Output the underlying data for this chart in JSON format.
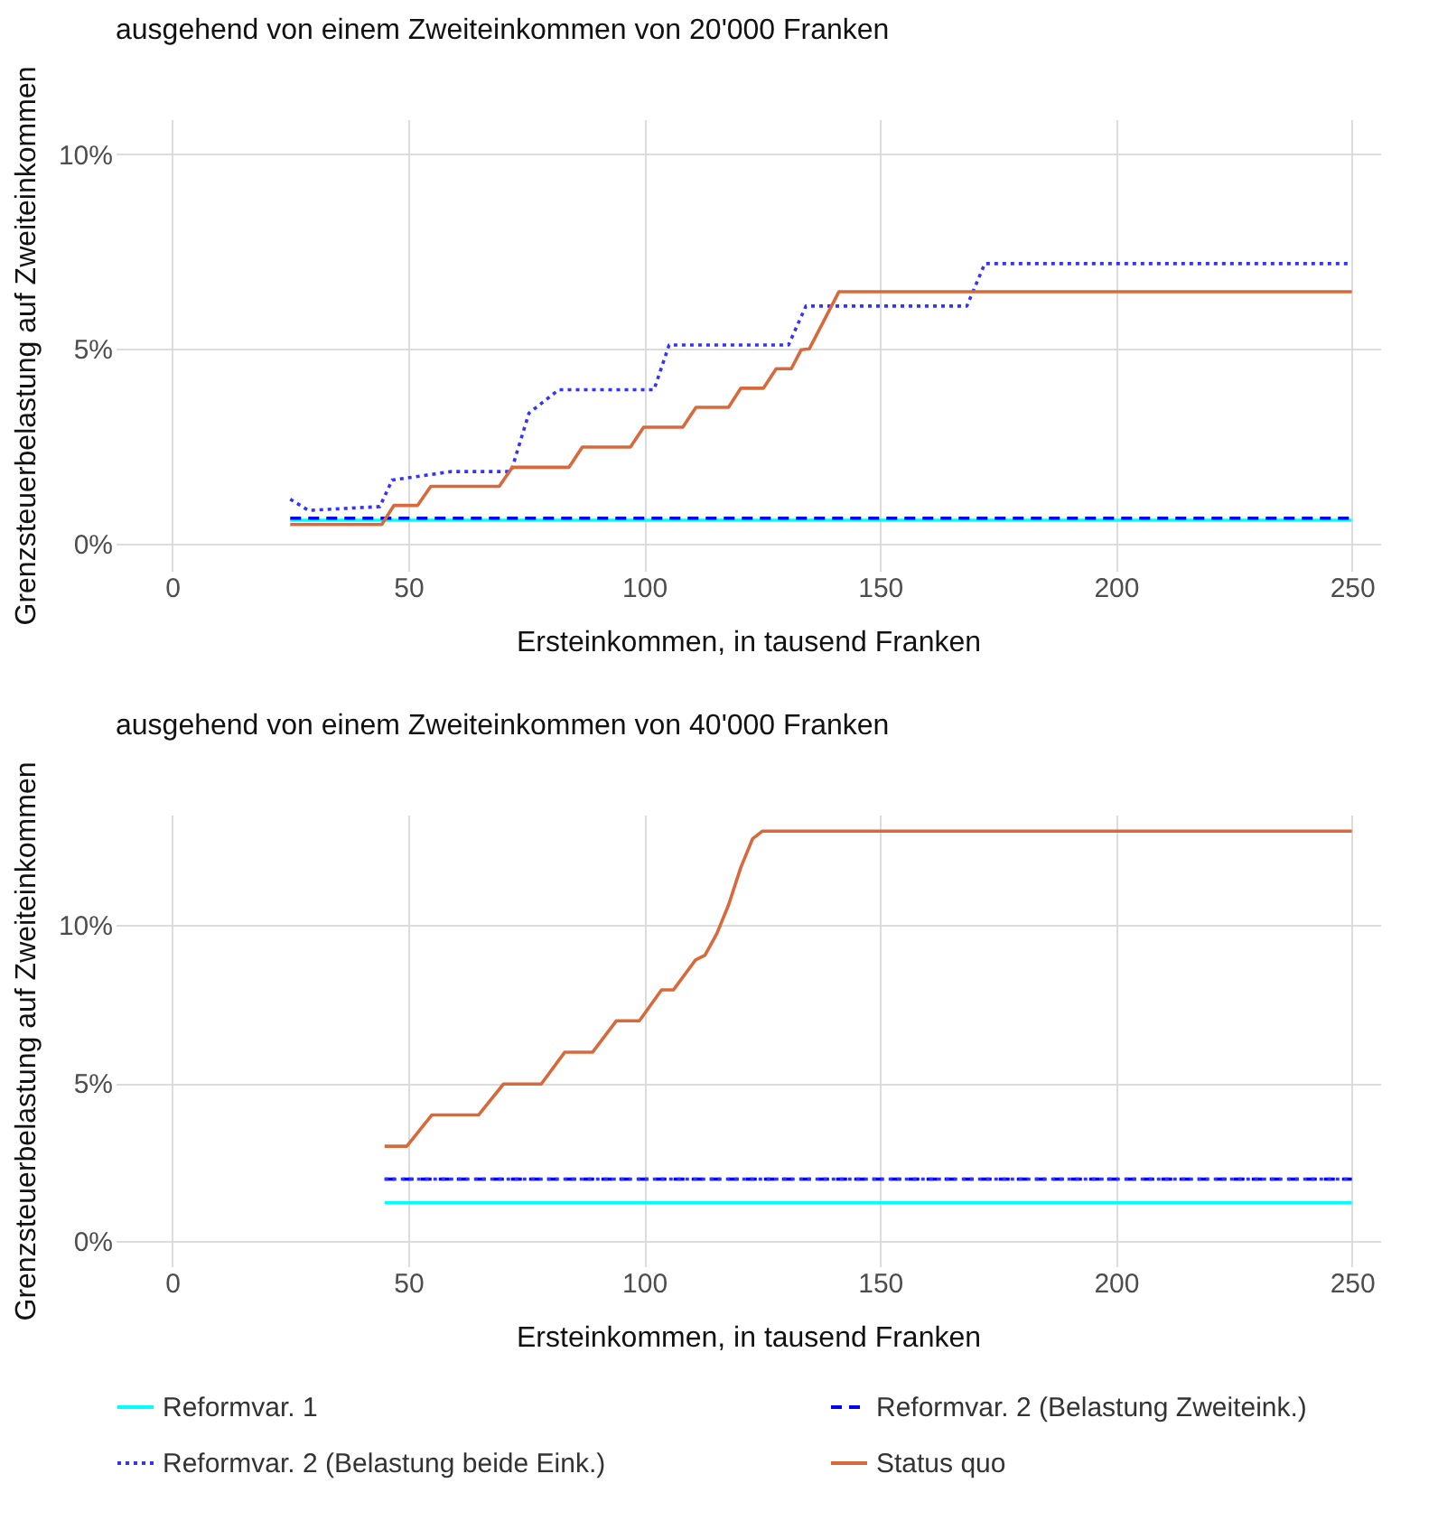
{
  "chart_data": [
    {
      "type": "line",
      "title": "ausgehend von einem Zweiteinkommen von 20'000 Franken",
      "xlabel": "Ersteinkommen, in tausend Franken",
      "ylabel": "Grenzsteuerbelastung auf Zweiteinkommen",
      "xlim": [
        -12,
        256
      ],
      "xticks": [
        0,
        50,
        100,
        150,
        200,
        250
      ],
      "ylim": [
        -0.7,
        10.9
      ],
      "yticks": [
        {
          "value": 0,
          "label": "0%"
        },
        {
          "value": 5,
          "label": "5%"
        },
        {
          "value": 10,
          "label": "10%"
        }
      ],
      "grid": true,
      "legend": "bottom",
      "marker": "none",
      "series": [
        {
          "name": "Reformvar. 1",
          "color": "#00ffff",
          "line_style": "solid",
          "x": [
            25,
            250
          ],
          "values": [
            0.6,
            0.6
          ]
        },
        {
          "name": "Reformvar. 2 (Belastung Zweiteink.)",
          "color": "#0000ff",
          "line_style": "dashed",
          "x": [
            25,
            250
          ],
          "values": [
            0.65,
            0.65
          ]
        },
        {
          "name": "Reformvar. 2 (Belastung beide Eink.)",
          "color": "#3333ff",
          "line_style": "dotted",
          "x": [
            25,
            28.9,
            44,
            46.6,
            59.2,
            71.8,
            75.6,
            81.9,
            102.1,
            105.3,
            130.6,
            134.3,
            168.4,
            172.2,
            250
          ],
          "values": [
            1.14,
            0.85,
            0.95,
            1.63,
            1.85,
            1.85,
            3.35,
            3.95,
            3.95,
            5.1,
            5.1,
            6.1,
            6.1,
            7.19,
            7.19
          ]
        },
        {
          "name": "Status quo",
          "color": "#d9693a",
          "line_style": "solid",
          "x": [
            25,
            44.4,
            47,
            52,
            54.8,
            69.3,
            72.1,
            84.1,
            86.9,
            97.1,
            99.9,
            108.2,
            111,
            117.9,
            120.5,
            125.3,
            128,
            131.2,
            133.3,
            135,
            141.3,
            250
          ],
          "values": [
            0.49,
            0.49,
            0.98,
            0.98,
            1.47,
            1.47,
            1.96,
            1.96,
            2.48,
            2.48,
            2.99,
            2.99,
            3.5,
            3.5,
            3.99,
            3.99,
            4.49,
            4.49,
            4.98,
            5.0,
            6.47,
            6.47
          ]
        }
      ]
    },
    {
      "type": "line",
      "title": "ausgehend von einem Zweiteinkommen von 40'000 Franken",
      "xlabel": "Ersteinkommen, in tausend Franken",
      "ylabel": "Grenzsteuerbelastung auf Zweiteinkommen",
      "xlim": [
        -12,
        256
      ],
      "xticks": [
        0,
        50,
        100,
        150,
        200,
        250
      ],
      "ylim": [
        -0.8,
        13.5
      ],
      "yticks": [
        {
          "value": 0,
          "label": "0%"
        },
        {
          "value": 5,
          "label": "5%"
        },
        {
          "value": 10,
          "label": "10%"
        }
      ],
      "grid": true,
      "legend": "bottom",
      "marker": "none",
      "series": [
        {
          "name": "Reformvar. 1",
          "color": "#00ffff",
          "line_style": "solid",
          "x": [
            45,
            250
          ],
          "values": [
            1.21,
            1.21
          ]
        },
        {
          "name": "Reformvar. 2 (Belastung Zweiteink.)",
          "color": "#0000ff",
          "line_style": "dashed",
          "x": [
            45,
            250
          ],
          "values": [
            1.96,
            1.96
          ]
        },
        {
          "name": "Reformvar. 2 (Belastung beide Eink.)",
          "color": "#3333ff",
          "line_style": "dotted",
          "x": [
            45,
            250
          ],
          "values": [
            1.96,
            1.96
          ]
        },
        {
          "name": "Status quo",
          "color": "#d9693a",
          "line_style": "solid",
          "x": [
            45,
            49.7,
            55,
            64.9,
            70.2,
            78.2,
            83.2,
            89.1,
            94.1,
            99,
            103.7,
            106.2,
            110.9,
            112.9,
            115.4,
            117.9,
            120.5,
            123,
            125.1,
            250
          ],
          "values": [
            3.0,
            3.0,
            3.99,
            3.99,
            4.97,
            4.97,
            5.98,
            5.98,
            6.97,
            6.97,
            7.95,
            7.95,
            8.9,
            9.05,
            9.73,
            10.64,
            11.83,
            12.74,
            12.98,
            12.98
          ]
        }
      ]
    }
  ]
}
